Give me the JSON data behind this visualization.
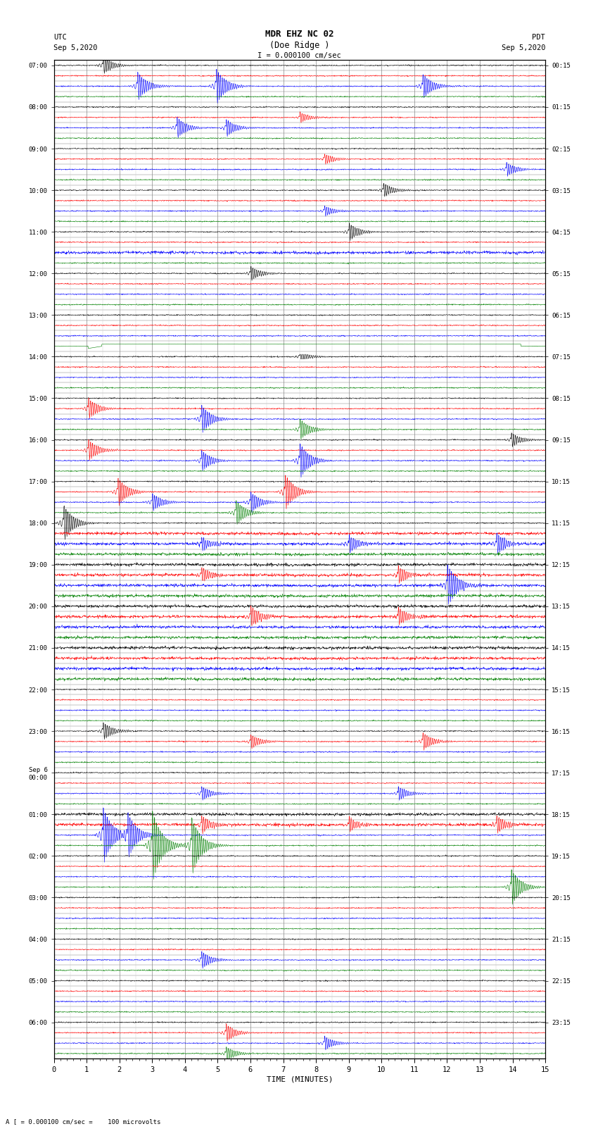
{
  "title_line1": "MDR EHZ NC 02",
  "title_line2": "(Doe Ridge )",
  "scale_label": "I = 0.000100 cm/sec",
  "left_header": "UTC",
  "left_date": "Sep 5,2020",
  "right_header": "PDT",
  "right_date": "Sep 5,2020",
  "xlabel": "TIME (MINUTES)",
  "footer_label": "A [ = 0.000100 cm/sec =    100 microvolts",
  "utc_labels": [
    "07:00",
    "",
    "",
    "",
    "08:00",
    "",
    "",
    "",
    "09:00",
    "",
    "",
    "",
    "10:00",
    "",
    "",
    "",
    "11:00",
    "",
    "",
    "",
    "12:00",
    "",
    "",
    "",
    "13:00",
    "",
    "",
    "",
    "14:00",
    "",
    "",
    "",
    "15:00",
    "",
    "",
    "",
    "16:00",
    "",
    "",
    "",
    "17:00",
    "",
    "",
    "",
    "18:00",
    "",
    "",
    "",
    "19:00",
    "",
    "",
    "",
    "20:00",
    "",
    "",
    "",
    "21:00",
    "",
    "",
    "",
    "22:00",
    "",
    "",
    "",
    "23:00",
    "",
    "",
    "",
    "Sep 6\n00:00",
    "",
    "",
    "",
    "01:00",
    "",
    "",
    "",
    "02:00",
    "",
    "",
    "",
    "03:00",
    "",
    "",
    "",
    "04:00",
    "",
    "",
    "",
    "05:00",
    "",
    "",
    "",
    "06:00",
    "",
    "",
    ""
  ],
  "pdt_labels": [
    "00:15",
    "",
    "",
    "",
    "01:15",
    "",
    "",
    "",
    "02:15",
    "",
    "",
    "",
    "03:15",
    "",
    "",
    "",
    "04:15",
    "",
    "",
    "",
    "05:15",
    "",
    "",
    "",
    "06:15",
    "",
    "",
    "",
    "07:15",
    "",
    "",
    "",
    "08:15",
    "",
    "",
    "",
    "09:15",
    "",
    "",
    "",
    "10:15",
    "",
    "",
    "",
    "11:15",
    "",
    "",
    "",
    "12:15",
    "",
    "",
    "",
    "13:15",
    "",
    "",
    "",
    "14:15",
    "",
    "",
    "",
    "15:15",
    "",
    "",
    "",
    "16:15",
    "",
    "",
    "",
    "17:15",
    "",
    "",
    "",
    "18:15",
    "",
    "",
    "",
    "19:15",
    "",
    "",
    "",
    "20:15",
    "",
    "",
    "",
    "21:15",
    "",
    "",
    "",
    "22:15",
    "",
    "",
    "",
    "23:15",
    "",
    "",
    ""
  ],
  "n_rows": 96,
  "colors_cycle": [
    "black",
    "red",
    "blue",
    "green"
  ],
  "bg_color": "#ffffff",
  "grid_major_color": "#888888",
  "grid_minor_color": "#cccccc",
  "trace_linewidth": 0.4,
  "noise_base_amplitude": 0.07,
  "trace_scale": 0.38
}
